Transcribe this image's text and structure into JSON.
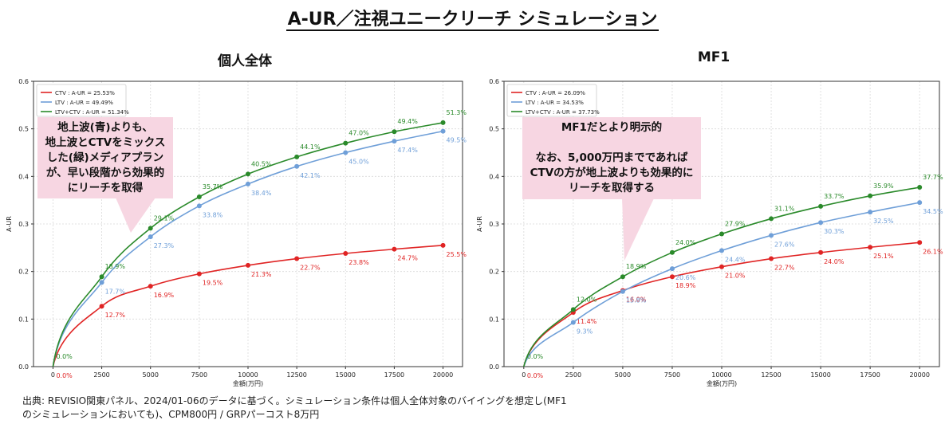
{
  "page": {
    "title": "A-UR／注視ユニークリーチ シミュレーション",
    "footnote_lines": [
      "出典: REVISIO関東パネル、2024/01-06のデータに基づく。シミュレーション条件は個人全体対象のバイイングを想定し(MF1",
      "のシミュレーションにおいても)、CPM800円 / GRPパーコスト8万円"
    ]
  },
  "colors": {
    "ctv": "#e02424",
    "ltv": "#6f9fd8",
    "both": "#2a8a2a",
    "callout": "#f7d6e2"
  },
  "chart_data": [
    {
      "type": "line",
      "title": "個人全体",
      "xlabel": "金額(万円)",
      "ylabel": "A-UR",
      "xlim": [
        -1000,
        21000
      ],
      "ylim": [
        0,
        0.6
      ],
      "xticks": [
        0,
        2500,
        5000,
        7500,
        10000,
        12500,
        15000,
        17500,
        20000
      ],
      "yticks": [
        0.0,
        0.1,
        0.2,
        0.3,
        0.4,
        0.5,
        0.6
      ],
      "grid": true,
      "legend_position": "top-left",
      "x": [
        0,
        2500,
        5000,
        7500,
        10000,
        12500,
        15000,
        17500,
        20000
      ],
      "series": [
        {
          "key": "ctv",
          "name": "CTV : A-UR = 25.53%",
          "values": [
            0,
            0.127,
            0.169,
            0.195,
            0.213,
            0.227,
            0.238,
            0.247,
            0.255
          ],
          "labels": [
            "0.0%",
            "12.7%",
            "16.9%",
            "19.5%",
            "21.3%",
            "22.7%",
            "23.8%",
            "24.7%",
            "25.5%"
          ]
        },
        {
          "key": "ltv",
          "name": "LTV : A-UR = 49.49%",
          "values": [
            0,
            0.177,
            0.273,
            0.338,
            0.384,
            0.421,
            0.45,
            0.474,
            0.495
          ],
          "labels": [
            "",
            "17.7%",
            "27.3%",
            "33.8%",
            "38.4%",
            "42.1%",
            "45.0%",
            "47.4%",
            "49.5%"
          ]
        },
        {
          "key": "both",
          "name": "LTV+CTV : A-UR = 51.34%",
          "values": [
            0,
            0.189,
            0.291,
            0.357,
            0.405,
            0.441,
            0.47,
            0.494,
            0.513
          ],
          "labels": [
            "0.0%",
            "18.9%",
            "29.1%",
            "35.7%",
            "40.5%",
            "44.1%",
            "47.0%",
            "49.4%",
            "51.3%"
          ]
        }
      ],
      "callout": "地上波(青)よりも、\n地上波とCTVをミックス\nした(緑)メディアプラン\nが、早い段階から効果的\nにリーチを取得"
    },
    {
      "type": "line",
      "title": "MF1",
      "xlabel": "金額(万円)",
      "ylabel": "A-UR",
      "xlim": [
        -1000,
        21000
      ],
      "ylim": [
        0,
        0.6
      ],
      "xticks": [
        0,
        2500,
        5000,
        7500,
        10000,
        12500,
        15000,
        17500,
        20000
      ],
      "yticks": [
        0.0,
        0.1,
        0.2,
        0.3,
        0.4,
        0.5,
        0.6
      ],
      "grid": true,
      "legend_position": "top-left",
      "x": [
        0,
        2500,
        5000,
        7500,
        10000,
        12500,
        15000,
        17500,
        20000
      ],
      "series": [
        {
          "key": "ctv",
          "name": "CTV : A-UR = 26.09%",
          "values": [
            0,
            0.114,
            0.16,
            0.189,
            0.21,
            0.227,
            0.24,
            0.251,
            0.261
          ],
          "labels": [
            "0.0%",
            "11.4%",
            "16.0%",
            "18.9%",
            "21.0%",
            "22.7%",
            "24.0%",
            "25.1%",
            "26.1%"
          ]
        },
        {
          "key": "ltv",
          "name": "LTV : A-UR = 34.53%",
          "values": [
            0,
            0.093,
            0.158,
            0.206,
            0.244,
            0.276,
            0.303,
            0.325,
            0.345
          ],
          "labels": [
            "",
            "9.3%",
            "15.8%",
            "20.6%",
            "24.4%",
            "27.6%",
            "30.3%",
            "32.5%",
            "34.5%"
          ]
        },
        {
          "key": "both",
          "name": "LTV+CTV : A-UR = 37.73%",
          "values": [
            0,
            0.12,
            0.189,
            0.24,
            0.279,
            0.311,
            0.337,
            0.359,
            0.377
          ],
          "labels": [
            "0.0%",
            "12.0%",
            "18.9%",
            "24.0%",
            "27.9%",
            "31.1%",
            "33.7%",
            "35.9%",
            "37.7%"
          ]
        }
      ],
      "callout": "MF1だとより明示的\n\nなお、5,000万円までであれば\nCTVの方が地上波よりも効果的に\nリーチを取得する"
    }
  ]
}
